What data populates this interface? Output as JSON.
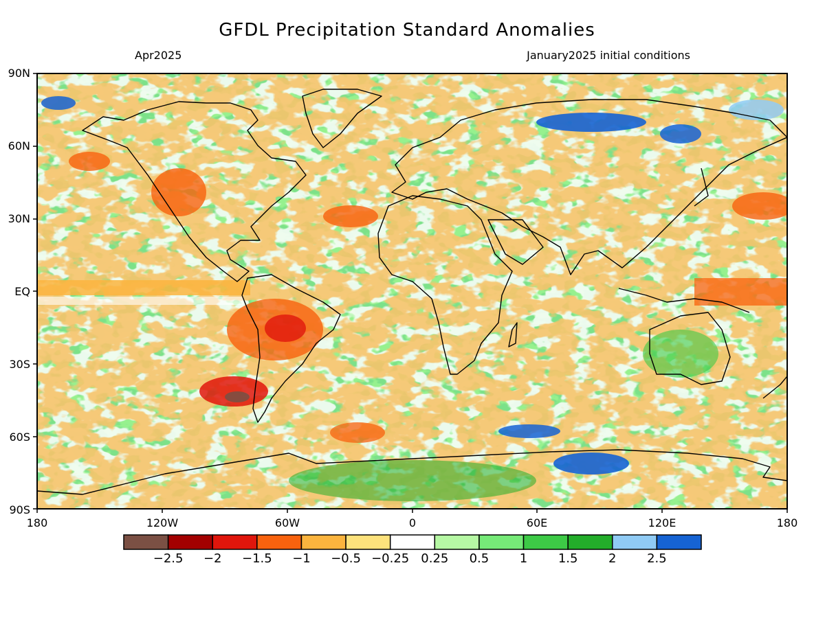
{
  "title": "GFDL Precipitation Standard Anomalies",
  "valid_month": "Apr2025",
  "initial_conditions": "January2025 initial conditions",
  "lat_labels": [
    "90N",
    "60N",
    "30N",
    "EQ",
    "30S",
    "60S",
    "90S"
  ],
  "lon_labels": [
    "180",
    "120W",
    "60W",
    "0",
    "60E",
    "120E",
    "180"
  ],
  "colorbar": {
    "colors": [
      "#7b5044",
      "#a30000",
      "#e0160c",
      "#f8620e",
      "#fbb43e",
      "#fde27c",
      "#ffffff",
      "#b6f8a4",
      "#76ea78",
      "#3dca46",
      "#23ad2a",
      "#90cbf5",
      "#1663d3"
    ],
    "labels": [
      "−2.5",
      "−2",
      "−1.5",
      "−1",
      "−0.5",
      "−0.25",
      "0.25",
      "0.5",
      "1",
      "1.5",
      "2",
      "2.5"
    ]
  }
}
